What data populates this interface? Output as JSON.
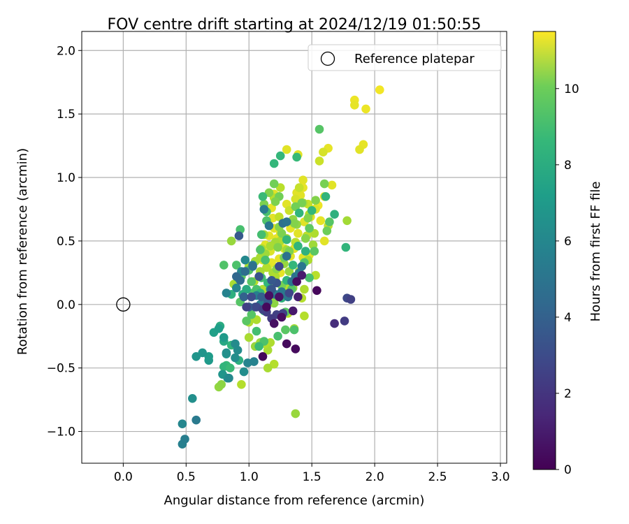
{
  "chart_data": {
    "type": "scatter",
    "title": "FOV centre drift starting at 2024/12/19 01:50:55",
    "xlabel": "Angular distance from reference (arcmin)",
    "ylabel": "Rotation from reference (arcmin)",
    "xlim": [
      -0.33,
      3.05
    ],
    "ylim": [
      -1.25,
      2.15
    ],
    "xticks": [
      0.0,
      0.5,
      1.0,
      1.5,
      2.0,
      2.5,
      3.0
    ],
    "xtick_labels": [
      "0.0",
      "0.5",
      "1.0",
      "1.5",
      "2.0",
      "2.5",
      "3.0"
    ],
    "yticks": [
      -1.0,
      -0.5,
      0.0,
      0.5,
      1.0,
      1.5,
      2.0
    ],
    "ytick_labels": [
      "−1.0",
      "−0.5",
      "0.0",
      "0.5",
      "1.0",
      "1.5",
      "2.0"
    ],
    "grid": true,
    "legend": {
      "placement": "top-right",
      "entries": [
        "Reference platepar"
      ]
    },
    "reference_point": {
      "x": 0.0,
      "y": 0.0,
      "marker": "hollow-circle"
    },
    "colorbar": {
      "label": "Hours from first FF file",
      "min": 0,
      "max": 11.5,
      "ticks": [
        0,
        2,
        4,
        6,
        8,
        10
      ],
      "tick_labels": [
        "0",
        "2",
        "4",
        "6",
        "8",
        "10"
      ],
      "colormap": "viridis"
    },
    "points": [
      [
        2.04,
        1.69,
        11.3
      ],
      [
        1.84,
        1.61,
        11.2
      ],
      [
        1.93,
        1.54,
        11.2
      ],
      [
        1.84,
        1.57,
        11.1
      ],
      [
        1.91,
        1.26,
        11.1
      ],
      [
        1.88,
        1.22,
        11.0
      ],
      [
        1.3,
        1.22,
        11.0
      ],
      [
        1.39,
        1.18,
        11.0
      ],
      [
        1.63,
        1.23,
        11.1
      ],
      [
        1.59,
        1.2,
        10.8
      ],
      [
        1.56,
        1.13,
        10.6
      ],
      [
        1.66,
        0.94,
        11.0
      ],
      [
        1.43,
        0.98,
        11.0
      ],
      [
        1.43,
        0.92,
        11.1
      ],
      [
        1.41,
        0.86,
        11.0
      ],
      [
        1.38,
        0.88,
        11.0
      ],
      [
        1.6,
        0.85,
        11.0
      ],
      [
        1.55,
        0.78,
        11.2
      ],
      [
        1.52,
        0.75,
        11.0
      ],
      [
        1.49,
        0.69,
        11.0
      ],
      [
        1.57,
        0.66,
        11.1
      ],
      [
        1.6,
        0.5,
        11.0
      ],
      [
        1.44,
        0.65,
        11.0
      ],
      [
        1.33,
        0.6,
        11.1
      ],
      [
        1.3,
        0.79,
        11.0
      ],
      [
        1.25,
        0.56,
        11.0
      ],
      [
        1.22,
        0.52,
        11.1
      ],
      [
        1.28,
        0.44,
        11.0
      ],
      [
        1.36,
        0.44,
        11.0
      ],
      [
        1.33,
        0.38,
        11.0
      ],
      [
        1.24,
        0.36,
        11.1
      ],
      [
        1.18,
        0.33,
        11.1
      ],
      [
        1.15,
        0.3,
        11.0
      ],
      [
        1.25,
        0.25,
        11.1
      ],
      [
        1.21,
        0.2,
        11.0
      ],
      [
        1.11,
        0.35,
        11.0
      ],
      [
        1.17,
        0.42,
        10.9
      ],
      [
        1.13,
        0.47,
        11.0
      ],
      [
        1.16,
        0.54,
        11.0
      ],
      [
        1.2,
        0.6,
        11.0
      ],
      [
        1.19,
        0.68,
        11.0
      ],
      [
        1.18,
        0.76,
        11.1
      ],
      [
        1.2,
        0.87,
        11.0
      ],
      [
        1.39,
        0.56,
        11.0
      ],
      [
        1.43,
        0.37,
        11.0
      ],
      [
        1.48,
        0.39,
        11.0
      ],
      [
        1.53,
        0.75,
        10.9
      ],
      [
        1.47,
        0.79,
        10.5
      ],
      [
        1.37,
        0.83,
        10.8
      ],
      [
        1.32,
        0.74,
        10.6
      ],
      [
        1.24,
        0.69,
        10.4
      ],
      [
        1.2,
        0.84,
        10.2
      ],
      [
        1.25,
        0.92,
        10.3
      ],
      [
        1.4,
        0.92,
        10.5
      ],
      [
        1.43,
        0.8,
        10.0
      ],
      [
        1.48,
        0.71,
        10.2
      ],
      [
        1.63,
        0.62,
        10.4
      ],
      [
        1.52,
        0.56,
        10.1
      ],
      [
        1.46,
        0.54,
        10.3
      ],
      [
        1.37,
        0.49,
        10.3
      ],
      [
        1.3,
        0.52,
        10.0
      ],
      [
        1.25,
        0.5,
        10.1
      ],
      [
        1.21,
        0.49,
        9.9
      ],
      [
        1.17,
        0.46,
        10.0
      ],
      [
        1.1,
        0.44,
        10.1
      ],
      [
        1.09,
        0.37,
        10.0
      ],
      [
        1.14,
        0.29,
        10.2
      ],
      [
        1.19,
        0.25,
        10.0
      ],
      [
        1.21,
        0.22,
        10.1
      ],
      [
        1.26,
        0.15,
        10.0
      ],
      [
        1.31,
        0.14,
        10.2
      ],
      [
        1.4,
        0.26,
        10.0
      ],
      [
        1.47,
        0.35,
        10.1
      ],
      [
        1.53,
        0.23,
        10.3
      ],
      [
        1.44,
        0.12,
        10.1
      ],
      [
        1.42,
        0.05,
        10.2
      ],
      [
        1.44,
        -0.09,
        10.2
      ],
      [
        1.31,
        -0.07,
        10.2
      ],
      [
        1.2,
        0.06,
        10.1
      ],
      [
        1.16,
        0.1,
        10.0
      ],
      [
        1.11,
        0.12,
        10.1
      ],
      [
        1.04,
        0.18,
        10.2
      ],
      [
        1.0,
        0.3,
        10.0
      ],
      [
        1.05,
        0.34,
        9.9
      ],
      [
        1.09,
        0.26,
        10.0
      ],
      [
        1.13,
        0.4,
        9.8
      ],
      [
        1.12,
        0.55,
        9.9
      ],
      [
        1.28,
        0.32,
        9.7
      ],
      [
        1.32,
        0.26,
        9.7
      ],
      [
        1.3,
        0.43,
        9.9
      ],
      [
        1.35,
        0.67,
        9.6
      ],
      [
        1.78,
        0.66,
        9.9
      ],
      [
        1.51,
        0.47,
        9.8
      ],
      [
        1.38,
        0.63,
        9.6
      ],
      [
        1.35,
        0.13,
        9.7
      ],
      [
        1.36,
        -0.19,
        10.0
      ],
      [
        1.17,
        -0.3,
        10.1
      ],
      [
        1.15,
        -0.36,
        10.0
      ],
      [
        1.13,
        -0.31,
        10.2
      ],
      [
        1.2,
        -0.47,
        10.2
      ],
      [
        1.15,
        -0.5,
        10.0
      ],
      [
        1.06,
        -0.12,
        10.1
      ],
      [
        1.0,
        -0.14,
        10.1
      ],
      [
        1.0,
        -0.26,
        10.0
      ],
      [
        1.09,
        -0.3,
        9.8
      ],
      [
        1.05,
        -0.33,
        9.7
      ],
      [
        0.88,
        0.16,
        10.0
      ],
      [
        0.94,
        -0.63,
        10.2
      ],
      [
        0.76,
        -0.65,
        9.6
      ],
      [
        0.78,
        -0.63,
        9.5
      ],
      [
        0.86,
        0.5,
        9.7
      ],
      [
        1.37,
        -0.86,
        9.7
      ],
      [
        1.2,
        0.01,
        9.5
      ],
      [
        1.14,
        0.04,
        9.4
      ],
      [
        1.18,
        0.15,
        9.3
      ],
      [
        1.22,
        0.28,
        9.5
      ],
      [
        1.26,
        0.15,
        9.1
      ],
      [
        1.28,
        0.37,
        9.0
      ],
      [
        1.32,
        0.42,
        9.2
      ],
      [
        1.23,
        0.45,
        9.3
      ],
      [
        1.26,
        0.56,
        9.2
      ],
      [
        1.24,
        0.61,
        9.4
      ],
      [
        1.36,
        0.64,
        9.3
      ],
      [
        1.45,
        0.52,
        9.4
      ],
      [
        1.47,
        0.68,
        9.3
      ],
      [
        1.42,
        0.8,
        9.1
      ],
      [
        1.24,
        0.85,
        9.0
      ],
      [
        1.21,
        0.81,
        9.2
      ],
      [
        1.12,
        0.79,
        9.2
      ],
      [
        1.2,
        0.95,
        9.0
      ],
      [
        1.16,
        0.88,
        9.3
      ],
      [
        1.37,
        0.77,
        9.0
      ],
      [
        1.53,
        0.82,
        9.3
      ],
      [
        1.6,
        0.95,
        9.1
      ],
      [
        1.62,
        0.58,
        8.9
      ],
      [
        1.56,
        1.38,
        8.4
      ],
      [
        1.64,
        0.65,
        8.4
      ],
      [
        1.48,
        0.6,
        8.6
      ],
      [
        1.52,
        0.42,
        8.5
      ],
      [
        1.44,
        0.33,
        8.3
      ],
      [
        1.48,
        0.21,
        8.1
      ],
      [
        1.37,
        0.22,
        8.0
      ],
      [
        1.34,
        0.12,
        8.4
      ],
      [
        1.29,
        -0.06,
        8.5
      ],
      [
        1.29,
        -0.2,
        8.5
      ],
      [
        1.36,
        -0.2,
        8.2
      ],
      [
        1.23,
        -0.25,
        8.1
      ],
      [
        1.12,
        -0.29,
        8.2
      ],
      [
        1.06,
        -0.21,
        8.0
      ],
      [
        1.02,
        -0.08,
        8.4
      ],
      [
        0.98,
        -0.13,
        8.5
      ],
      [
        0.93,
        0.02,
        8.4
      ],
      [
        0.92,
        0.2,
        8.3
      ],
      [
        0.9,
        0.31,
        8.2
      ],
      [
        0.8,
        0.31,
        8.3
      ],
      [
        0.93,
        0.59,
        8.1
      ],
      [
        0.94,
        0.22,
        8.6
      ],
      [
        1.0,
        0.27,
        8.3
      ],
      [
        1.02,
        0.18,
        8.4
      ],
      [
        1.03,
        0.09,
        8.3
      ],
      [
        1.06,
        0.12,
        8.1
      ],
      [
        1.1,
        0.21,
        8.0
      ],
      [
        1.13,
        0.35,
        8.1
      ],
      [
        1.09,
        0.43,
        8.3
      ],
      [
        1.1,
        0.55,
        8.0
      ],
      [
        1.14,
        0.66,
        8.3
      ],
      [
        1.14,
        0.73,
        8.1
      ],
      [
        1.11,
        0.85,
        7.8
      ],
      [
        1.2,
        1.11,
        7.6
      ],
      [
        1.25,
        1.17,
        7.6
      ],
      [
        1.38,
        1.16,
        7.7
      ],
      [
        1.3,
        0.51,
        7.6
      ],
      [
        1.4,
        0.72,
        7.5
      ],
      [
        1.5,
        0.74,
        7.6
      ],
      [
        1.61,
        0.85,
        7.5
      ],
      [
        1.68,
        0.71,
        7.3
      ],
      [
        1.77,
        0.45,
        7.5
      ],
      [
        1.45,
        0.42,
        7.3
      ],
      [
        1.39,
        0.46,
        7.5
      ],
      [
        1.35,
        0.31,
        7.6
      ],
      [
        1.3,
        0.19,
        7.5
      ],
      [
        1.26,
        0.05,
        7.4
      ],
      [
        1.2,
        0.08,
        7.6
      ],
      [
        1.15,
        0.17,
        7.6
      ],
      [
        1.09,
        0.09,
        7.5
      ],
      [
        1.12,
        -0.05,
        7.4
      ],
      [
        1.08,
        -0.33,
        7.8
      ],
      [
        0.82,
        -0.48,
        7.7
      ],
      [
        0.8,
        -0.49,
        7.5
      ],
      [
        0.85,
        -0.5,
        7.8
      ],
      [
        0.86,
        -0.32,
        7.5
      ],
      [
        0.92,
        -0.44,
        7.2
      ],
      [
        0.95,
        0.08,
        7.1
      ],
      [
        0.98,
        0.12,
        7.0
      ],
      [
        0.86,
        0.08,
        7.3
      ],
      [
        0.8,
        -0.29,
        6.9
      ],
      [
        0.77,
        -0.17,
        7.0
      ],
      [
        0.72,
        -0.22,
        6.5
      ],
      [
        0.68,
        -0.41,
        6.3
      ],
      [
        0.68,
        -0.44,
        6.2
      ],
      [
        0.58,
        -0.41,
        6.0
      ],
      [
        0.63,
        -0.38,
        6.0
      ],
      [
        0.76,
        -0.19,
        6.4
      ],
      [
        0.8,
        -0.26,
        6.2
      ],
      [
        0.82,
        -0.39,
        6.0
      ],
      [
        0.79,
        -0.55,
        6.0
      ],
      [
        0.83,
        -0.58,
        5.8
      ],
      [
        0.82,
        -0.38,
        5.7
      ],
      [
        0.89,
        -0.42,
        5.6
      ],
      [
        0.91,
        -0.36,
        5.5
      ],
      [
        0.89,
        -0.31,
        5.5
      ],
      [
        0.96,
        -0.53,
        5.6
      ],
      [
        0.99,
        -0.46,
        5.2
      ],
      [
        1.04,
        -0.45,
        5.1
      ],
      [
        0.84,
        -0.58,
        5.4
      ],
      [
        0.55,
        -0.74,
        5.7
      ],
      [
        0.47,
        -0.94,
        5.3
      ],
      [
        0.47,
        -1.1,
        5.0
      ],
      [
        0.49,
        -1.06,
        4.9
      ],
      [
        0.58,
        -0.91,
        4.7
      ],
      [
        0.82,
        0.09,
        5.1
      ],
      [
        0.9,
        0.13,
        5.3
      ],
      [
        0.94,
        0.26,
        5.2
      ],
      [
        0.97,
        0.35,
        5.4
      ],
      [
        1.03,
        0.31,
        5.3
      ],
      [
        1.06,
        0.07,
        5.0
      ],
      [
        1.09,
        0.0,
        4.9
      ],
      [
        1.14,
        0.05,
        5.2
      ],
      [
        1.17,
        0.12,
        5.1
      ],
      [
        1.21,
        0.08,
        4.8
      ],
      [
        1.26,
        0.1,
        4.6
      ],
      [
        1.31,
        0.06,
        4.4
      ],
      [
        1.34,
        0.18,
        4.5
      ],
      [
        1.37,
        0.22,
        4.3
      ],
      [
        1.4,
        0.25,
        4.7
      ],
      [
        1.42,
        0.3,
        4.5
      ],
      [
        1.3,
        0.38,
        4.3
      ],
      [
        1.27,
        0.64,
        4.2
      ],
      [
        1.3,
        0.65,
        4.4
      ],
      [
        1.16,
        0.62,
        4.6
      ],
      [
        1.12,
        0.75,
        4.8
      ],
      [
        1.03,
        0.3,
        4.3
      ],
      [
        0.97,
        0.26,
        4.1
      ],
      [
        0.93,
        0.19,
        4.0
      ],
      [
        0.9,
        0.22,
        3.8
      ],
      [
        0.96,
        0.06,
        3.6
      ],
      [
        1.0,
        -0.02,
        3.4
      ],
      [
        1.05,
        -0.02,
        3.2
      ],
      [
        1.1,
        0.06,
        3.5
      ],
      [
        1.15,
        0.02,
        3.3
      ],
      [
        1.18,
        0.12,
        3.1
      ],
      [
        1.22,
        0.17,
        3.0
      ],
      [
        1.18,
        0.19,
        3.2
      ],
      [
        1.08,
        0.22,
        3.0
      ],
      [
        0.92,
        0.54,
        3.2
      ],
      [
        1.02,
        0.06,
        2.7
      ],
      [
        1.06,
        -0.02,
        2.5
      ],
      [
        1.24,
        0.3,
        2.6
      ],
      [
        1.32,
        0.09,
        2.5
      ],
      [
        1.27,
        -0.07,
        2.3
      ],
      [
        1.22,
        -0.08,
        2.2
      ],
      [
        1.18,
        -0.11,
        2.0
      ],
      [
        1.14,
        -0.06,
        2.1
      ],
      [
        1.11,
        -0.04,
        2.3
      ],
      [
        0.98,
        -0.02,
        2.2
      ],
      [
        1.76,
        -0.13,
        2.0
      ],
      [
        1.78,
        0.05,
        2.5
      ],
      [
        1.81,
        0.04,
        2.2
      ],
      [
        1.68,
        -0.15,
        1.5
      ],
      [
        1.39,
        0.06,
        1.0
      ],
      [
        1.42,
        0.23,
        0.9
      ],
      [
        1.38,
        0.18,
        0.4
      ],
      [
        1.3,
        -0.31,
        0.3
      ],
      [
        1.37,
        -0.35,
        0.3
      ],
      [
        1.54,
        0.11,
        0.2
      ],
      [
        1.11,
        -0.41,
        0.2
      ],
      [
        1.2,
        -0.15,
        0.5
      ],
      [
        1.26,
        -0.1,
        0.4
      ],
      [
        1.24,
        0.06,
        0.6
      ],
      [
        1.14,
        -0.02,
        0.3
      ],
      [
        1.16,
        0.07,
        0.5
      ],
      [
        1.35,
        -0.05,
        0.8
      ]
    ]
  }
}
